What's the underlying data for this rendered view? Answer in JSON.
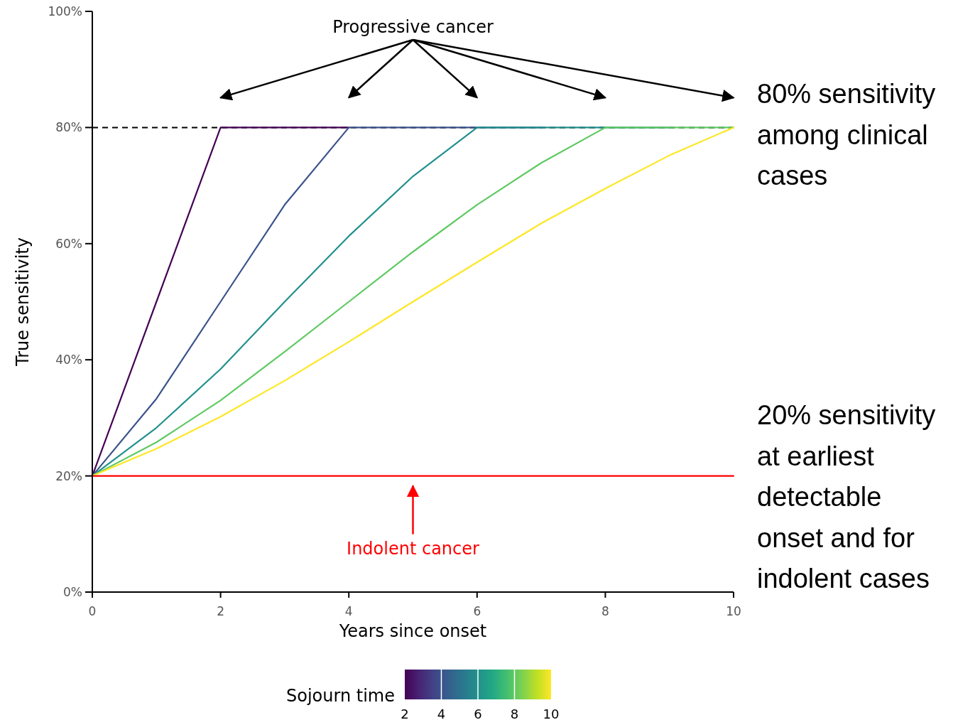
{
  "chart_data": {
    "type": "line",
    "xlabel": "Years since onset",
    "ylabel": "True sensitivity",
    "x": [
      0,
      1,
      2,
      3,
      4,
      5,
      6,
      7,
      8,
      9,
      10
    ],
    "series": [
      {
        "color": "#440154",
        "values": [
          20,
          50,
          80,
          80,
          80,
          null,
          null,
          null,
          null,
          null,
          null
        ]
      },
      {
        "color": "#3b528b",
        "values": [
          20,
          33.3,
          50,
          66.7,
          80,
          80,
          80,
          80,
          null,
          null,
          null
        ]
      },
      {
        "color": "#21908d",
        "values": [
          20,
          28.3,
          38.4,
          50,
          61.3,
          71.6,
          80,
          80,
          80,
          80,
          null
        ]
      },
      {
        "color": "#5ec962",
        "values": [
          20,
          25.8,
          33,
          41.4,
          50,
          58.6,
          66.7,
          73.9,
          80,
          80,
          80
        ]
      },
      {
        "color": "#fde725",
        "values": [
          20,
          24.7,
          30.2,
          36.4,
          43.1,
          50,
          56.8,
          63.5,
          69.5,
          75.2,
          80
        ]
      },
      {
        "color": "#ff0000",
        "values": [
          20,
          20,
          20,
          20,
          20,
          20,
          20,
          20,
          20,
          20,
          20
        ]
      }
    ],
    "xlim": [
      0,
      10
    ],
    "xticks": [
      0,
      2,
      4,
      6,
      8,
      10
    ],
    "ylim": [
      0,
      100
    ],
    "yticks": [
      {
        "value": 0,
        "label": "0%"
      },
      {
        "value": 20,
        "label": "20%"
      },
      {
        "value": 40,
        "label": "40%"
      },
      {
        "value": 60,
        "label": "60%"
      },
      {
        "value": 80,
        "label": "80%"
      },
      {
        "value": 100,
        "label": "100%"
      }
    ],
    "ref_lines": [
      {
        "axis": "y",
        "value": 80,
        "color": "#000000",
        "line_style": "dashed"
      }
    ],
    "clabel": "Sojourn time",
    "clim": [
      2,
      10
    ],
    "cticks": [
      2,
      4,
      6,
      8,
      10
    ],
    "grid": false,
    "annotations": [
      "Progressive cancer",
      "Indolent cancer",
      "80% sensitivity among clinical cases",
      "20% sensitivity at earliest detectable onset and for indolent cases"
    ]
  }
}
